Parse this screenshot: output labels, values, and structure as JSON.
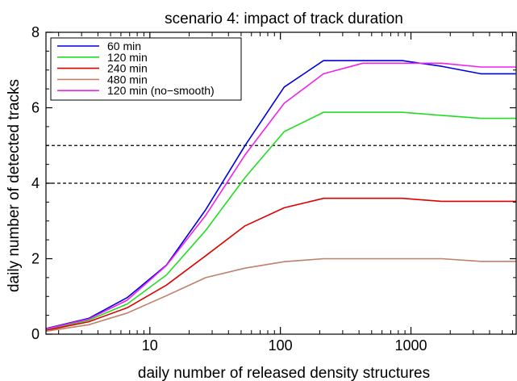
{
  "chart_data": {
    "type": "line",
    "title": "scenario 4: impact of track duration",
    "xlabel": "daily number of released density structures",
    "ylabel": "daily number of detected tracks",
    "x_scale": "log",
    "xlim": [
      1.6,
      6400
    ],
    "ylim": [
      0,
      8
    ],
    "x_ticks": [
      10,
      100,
      1000
    ],
    "x_tick_labels": [
      "10",
      "100",
      "1000"
    ],
    "y_ticks": [
      0,
      2,
      4,
      6,
      8
    ],
    "y_tick_labels": [
      "0",
      "2",
      "4",
      "6",
      "8"
    ],
    "grid": false,
    "legend_position": "top-left",
    "reference_lines": [
      {
        "y": 4,
        "style": "dashed",
        "color": "#000000"
      },
      {
        "y": 5,
        "style": "dashed",
        "color": "#000000"
      }
    ],
    "x": [
      1.6,
      3.4,
      6.7,
      13.4,
      26.8,
      53.6,
      107,
      214,
      428,
      857,
      1714,
      3428,
      6400
    ],
    "series": [
      {
        "name": "60 min",
        "color": "#0000dd",
        "values": [
          0.15,
          0.42,
          0.97,
          1.83,
          3.3,
          5.0,
          6.55,
          7.25,
          7.25,
          7.25,
          7.1,
          6.9,
          6.9
        ]
      },
      {
        "name": "120 min",
        "color": "#22dd22",
        "values": [
          0.12,
          0.37,
          0.8,
          1.57,
          2.75,
          4.15,
          5.37,
          5.88,
          5.88,
          5.88,
          5.8,
          5.72,
          5.72
        ]
      },
      {
        "name": "240 min",
        "color": "#dd0000",
        "values": [
          0.1,
          0.33,
          0.7,
          1.3,
          2.08,
          2.87,
          3.35,
          3.6,
          3.6,
          3.6,
          3.52,
          3.52,
          3.52
        ]
      },
      {
        "name": "480 min",
        "color": "#c0806a",
        "values": [
          0.08,
          0.25,
          0.56,
          1.02,
          1.5,
          1.75,
          1.92,
          2.0,
          2.0,
          2.0,
          2.0,
          1.93,
          1.93
        ]
      },
      {
        "name": "120 min (no−smooth)",
        "color": "#ee22ee",
        "values": [
          0.14,
          0.4,
          0.9,
          1.82,
          3.15,
          4.75,
          6.12,
          6.9,
          7.18,
          7.18,
          7.18,
          7.08,
          7.08
        ]
      }
    ]
  }
}
